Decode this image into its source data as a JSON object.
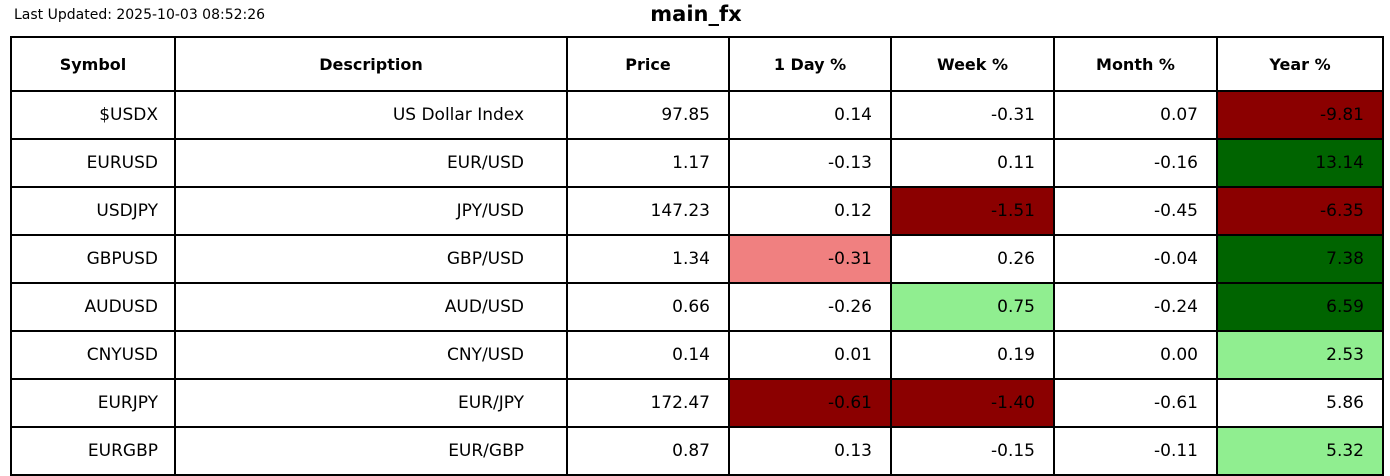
{
  "header": {
    "last_updated": "Last Updated: 2025-10-03 08:52:26",
    "title": "main_fx"
  },
  "colors": {
    "strong_negative": "#8b0000",
    "strong_positive": "#006400",
    "mild_negative": "#f08080",
    "mild_positive": "#90ee90",
    "border": "#000000",
    "background": "#ffffff"
  },
  "chart_data": {
    "type": "table",
    "title": "main_fx",
    "columns": [
      "Symbol",
      "Description",
      "Price",
      "1 Day %",
      "Week %",
      "Month %",
      "Year %"
    ],
    "column_keys": [
      "symbol",
      "description",
      "price",
      "day",
      "week",
      "month",
      "year"
    ],
    "rows": [
      {
        "symbol": "$USDX",
        "description": "US Dollar Index",
        "price": "97.85",
        "day": "0.14",
        "week": "-0.31",
        "month": "0.07",
        "year": "-9.81",
        "bg": {
          "year": "strong_negative"
        }
      },
      {
        "symbol": "EURUSD",
        "description": "EUR/USD",
        "price": "1.17",
        "day": "-0.13",
        "week": "0.11",
        "month": "-0.16",
        "year": "13.14",
        "bg": {
          "year": "strong_positive"
        }
      },
      {
        "symbol": "USDJPY",
        "description": "JPY/USD",
        "price": "147.23",
        "day": "0.12",
        "week": "-1.51",
        "month": "-0.45",
        "year": "-6.35",
        "bg": {
          "week": "strong_negative",
          "year": "strong_negative"
        }
      },
      {
        "symbol": "GBPUSD",
        "description": "GBP/USD",
        "price": "1.34",
        "day": "-0.31",
        "week": "0.26",
        "month": "-0.04",
        "year": "7.38",
        "bg": {
          "day": "mild_negative",
          "year": "strong_positive"
        }
      },
      {
        "symbol": "AUDUSD",
        "description": "AUD/USD",
        "price": "0.66",
        "day": "-0.26",
        "week": "0.75",
        "month": "-0.24",
        "year": "6.59",
        "bg": {
          "week": "mild_positive",
          "year": "strong_positive"
        }
      },
      {
        "symbol": "CNYUSD",
        "description": "CNY/USD",
        "price": "0.14",
        "day": "0.01",
        "week": "0.19",
        "month": "0.00",
        "year": "2.53",
        "bg": {
          "year": "mild_positive"
        }
      },
      {
        "symbol": "EURJPY",
        "description": "EUR/JPY",
        "price": "172.47",
        "day": "-0.61",
        "week": "-1.40",
        "month": "-0.61",
        "year": "5.86",
        "bg": {
          "day": "strong_negative",
          "week": "strong_negative"
        }
      },
      {
        "symbol": "EURGBP",
        "description": "EUR/GBP",
        "price": "0.87",
        "day": "0.13",
        "week": "-0.15",
        "month": "-0.11",
        "year": "5.32",
        "bg": {
          "year": "mild_positive"
        }
      }
    ]
  }
}
